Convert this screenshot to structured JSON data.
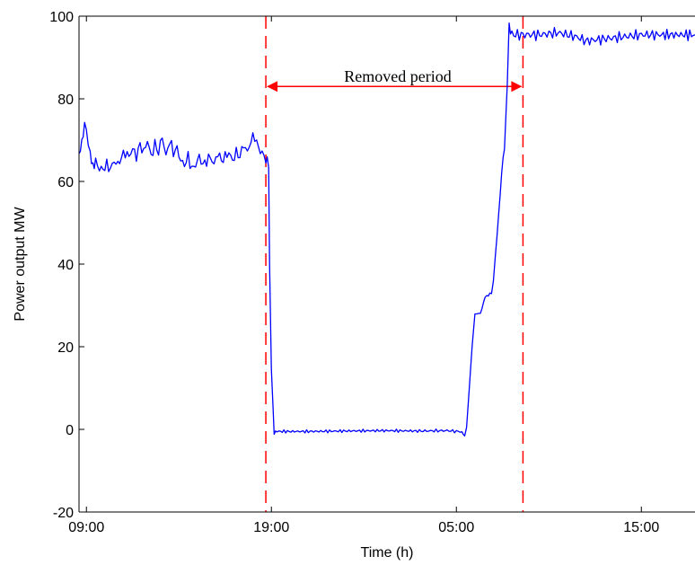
{
  "chart_data": {
    "type": "line",
    "title": "",
    "xlabel": "Time (h)",
    "ylabel": "Power output MW",
    "x_ticks": [
      "09:00",
      "19:00",
      "05:00",
      "15:00"
    ],
    "x_tick_hours": [
      0,
      10,
      20,
      30
    ],
    "xlim_hours": [
      -0.4,
      32.9
    ],
    "ylim": [
      -20,
      100
    ],
    "y_ticks": [
      -20,
      0,
      20,
      40,
      60,
      80,
      100
    ],
    "grid": false,
    "series": [
      {
        "color": "#0000ff",
        "points": [
          [
            -0.4,
            66
          ],
          [
            -0.25,
            69
          ],
          [
            -0.1,
            74
          ],
          [
            0.0,
            72
          ],
          [
            0.1,
            70
          ],
          [
            0.2,
            66
          ],
          [
            0.35,
            64
          ],
          [
            0.5,
            65
          ],
          [
            0.7,
            63
          ],
          [
            0.9,
            63
          ],
          [
            1.1,
            64
          ],
          [
            1.3,
            63
          ],
          [
            1.5,
            65
          ],
          [
            1.7,
            64
          ],
          [
            1.9,
            66
          ],
          [
            2.1,
            67
          ],
          [
            2.3,
            66
          ],
          [
            2.5,
            68
          ],
          [
            2.7,
            66
          ],
          [
            2.9,
            69
          ],
          [
            3.1,
            67
          ],
          [
            3.3,
            70
          ],
          [
            3.5,
            66
          ],
          [
            3.7,
            69
          ],
          [
            3.9,
            67
          ],
          [
            4.1,
            71
          ],
          [
            4.3,
            66
          ],
          [
            4.5,
            70
          ],
          [
            4.7,
            67
          ],
          [
            4.9,
            68
          ],
          [
            5.1,
            65
          ],
          [
            5.3,
            64
          ],
          [
            5.5,
            66
          ],
          [
            5.7,
            63
          ],
          [
            5.9,
            64
          ],
          [
            6.1,
            66
          ],
          [
            6.3,
            64
          ],
          [
            6.5,
            65
          ],
          [
            6.7,
            66
          ],
          [
            6.9,
            64
          ],
          [
            7.1,
            67
          ],
          [
            7.3,
            65
          ],
          [
            7.5,
            66
          ],
          [
            7.7,
            67
          ],
          [
            7.9,
            65
          ],
          [
            8.1,
            67
          ],
          [
            8.3,
            66
          ],
          [
            8.5,
            69
          ],
          [
            8.7,
            67
          ],
          [
            8.9,
            70
          ],
          [
            9.1,
            71
          ],
          [
            9.3,
            68
          ],
          [
            9.5,
            67
          ],
          [
            9.7,
            65
          ],
          [
            9.85,
            64
          ],
          [
            9.9,
            40
          ],
          [
            10.0,
            15
          ],
          [
            10.1,
            4
          ],
          [
            10.15,
            -1
          ],
          [
            10.3,
            -0.5
          ],
          [
            12.0,
            -0.5
          ],
          [
            14.0,
            -0.4
          ],
          [
            16.0,
            -0.3
          ],
          [
            18.0,
            -0.4
          ],
          [
            19.5,
            -0.3
          ],
          [
            20.3,
            -0.6
          ],
          [
            20.45,
            -1.8
          ],
          [
            20.55,
            0.5
          ],
          [
            20.7,
            10
          ],
          [
            20.85,
            20
          ],
          [
            21.0,
            28
          ],
          [
            21.3,
            28
          ],
          [
            21.55,
            32
          ],
          [
            21.9,
            33
          ],
          [
            22.0,
            36
          ],
          [
            22.2,
            47
          ],
          [
            22.45,
            62
          ],
          [
            22.6,
            68
          ],
          [
            22.75,
            84
          ],
          [
            22.85,
            97
          ],
          [
            23.0,
            96
          ],
          [
            23.1,
            95.5
          ],
          [
            24.5,
            95.5
          ],
          [
            25.5,
            96
          ],
          [
            26.5,
            95
          ],
          [
            27.0,
            94
          ],
          [
            28.0,
            94.5
          ],
          [
            29.0,
            95
          ],
          [
            30.0,
            95.5
          ],
          [
            31.0,
            95.5
          ],
          [
            32.9,
            95.5
          ]
        ]
      }
    ],
    "annotations": {
      "removed_label": "Removed period",
      "start_hour": 9.7,
      "end_hour": 23.6,
      "arrow_y": 83,
      "color": "#ff0000"
    }
  }
}
